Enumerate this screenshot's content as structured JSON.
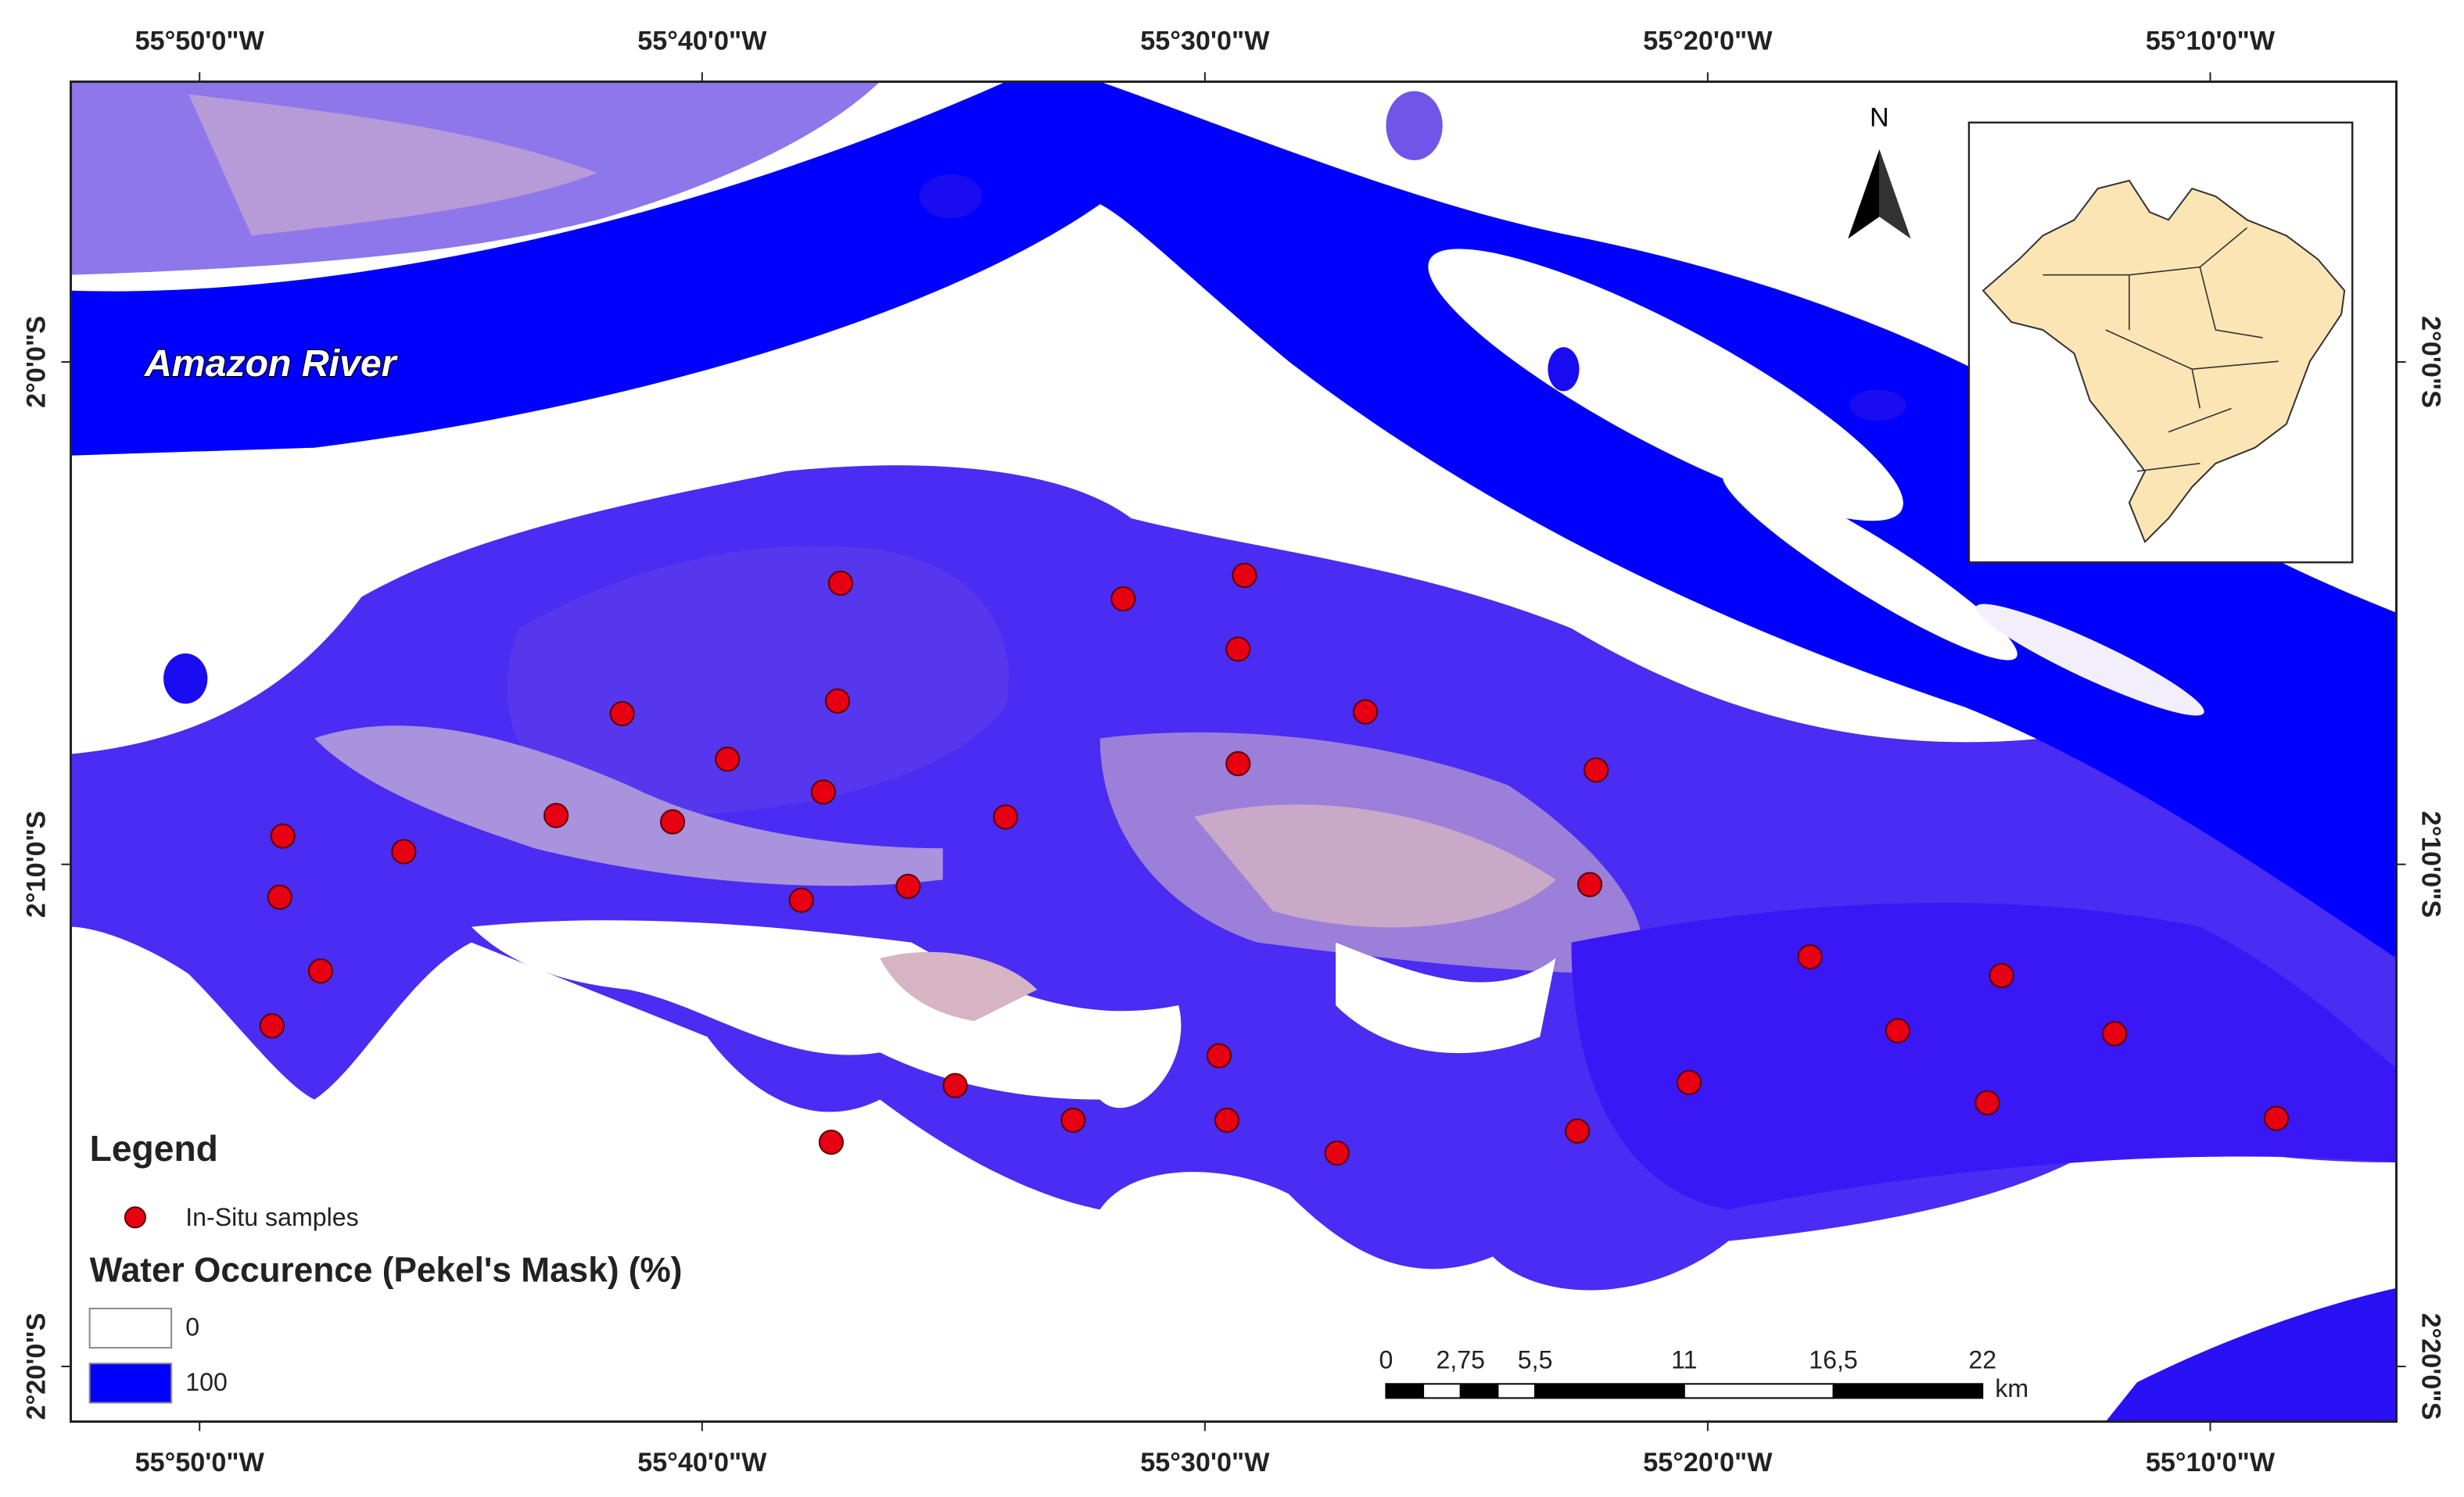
{
  "map": {
    "lonlim": [
      -55.876,
      -55.105
    ],
    "latlim": [
      -2.3516,
      -1.907
    ],
    "lonticks": [
      {
        "value": -55.8333,
        "label": "55°50'0\"W"
      },
      {
        "value": -55.6667,
        "label": "55°40'0\"W"
      },
      {
        "value": -55.5,
        "label": "55°30'0\"W"
      },
      {
        "value": -55.3333,
        "label": "55°20'0\"W"
      },
      {
        "value": -55.1667,
        "label": "55°10'0\"W"
      }
    ],
    "latticks": [
      {
        "value": -2.0,
        "label": "2°0'0\"S"
      },
      {
        "value": -2.1667,
        "label": "2°10'0\"S"
      },
      {
        "value": -2.3333,
        "label": "2°20'0\"S"
      }
    ],
    "annotation": "Amazon River",
    "north": "N"
  },
  "samples": {
    "color": "#e60012",
    "points": [
      {
        "lon": -55.6208,
        "lat": -2.0734
      },
      {
        "lon": -55.5271,
        "lat": -2.0786
      },
      {
        "lon": -55.4869,
        "lat": -2.0708
      },
      {
        "lon": -55.489,
        "lat": -2.0953
      },
      {
        "lon": -55.6932,
        "lat": -2.1167
      },
      {
        "lon": -55.6218,
        "lat": -2.1125
      },
      {
        "lon": -55.4468,
        "lat": -2.1161
      },
      {
        "lon": -55.6583,
        "lat": -2.1318
      },
      {
        "lon": -55.6265,
        "lat": -2.1427
      },
      {
        "lon": -55.489,
        "lat": -2.1333
      },
      {
        "lon": -55.3703,
        "lat": -2.1354
      },
      {
        "lon": -55.7151,
        "lat": -2.1505
      },
      {
        "lon": -55.6765,
        "lat": -2.1526
      },
      {
        "lon": -55.5661,
        "lat": -2.151
      },
      {
        "lon": -55.8057,
        "lat": -2.1573
      },
      {
        "lon": -55.7656,
        "lat": -2.1625
      },
      {
        "lon": -55.8067,
        "lat": -2.1776
      },
      {
        "lon": -55.6338,
        "lat": -2.1786
      },
      {
        "lon": -55.5984,
        "lat": -2.174
      },
      {
        "lon": -55.3724,
        "lat": -2.1734
      },
      {
        "lon": -55.2994,
        "lat": -2.1974
      },
      {
        "lon": -55.7932,
        "lat": -2.2021
      },
      {
        "lon": -55.2359,
        "lat": -2.2036
      },
      {
        "lon": -55.8093,
        "lat": -2.2203
      },
      {
        "lon": -55.2703,
        "lat": -2.2219
      },
      {
        "lon": -55.1984,
        "lat": -2.2229
      },
      {
        "lon": -55.4953,
        "lat": -2.2302
      },
      {
        "lon": -55.5828,
        "lat": -2.2401
      },
      {
        "lon": -55.3395,
        "lat": -2.2391
      },
      {
        "lon": -55.5437,
        "lat": -2.2516
      },
      {
        "lon": -55.4927,
        "lat": -2.2516
      },
      {
        "lon": -55.2406,
        "lat": -2.2458
      },
      {
        "lon": -55.1448,
        "lat": -2.251
      },
      {
        "lon": -55.6239,
        "lat": -2.2589
      },
      {
        "lon": -55.4562,
        "lat": -2.2625
      },
      {
        "lon": -55.3765,
        "lat": -2.2552
      }
    ]
  },
  "legend": {
    "title": "Legend",
    "samples_label": "In-Situ samples",
    "water_title": "Water Occurence (Pekel's Mask) (%)",
    "classes": [
      {
        "value": 0,
        "color": "#ffffff"
      },
      {
        "value": 100,
        "color": "#0000ff"
      }
    ]
  },
  "scale_bar": {
    "ticks": [
      0,
      {
        "value": 2.75,
        "label": "2,75"
      },
      {
        "value": 5.5,
        "label": "5,5"
      },
      11,
      {
        "value": 16.5,
        "label": "16,5"
      },
      22
    ],
    "unit": "km"
  }
}
